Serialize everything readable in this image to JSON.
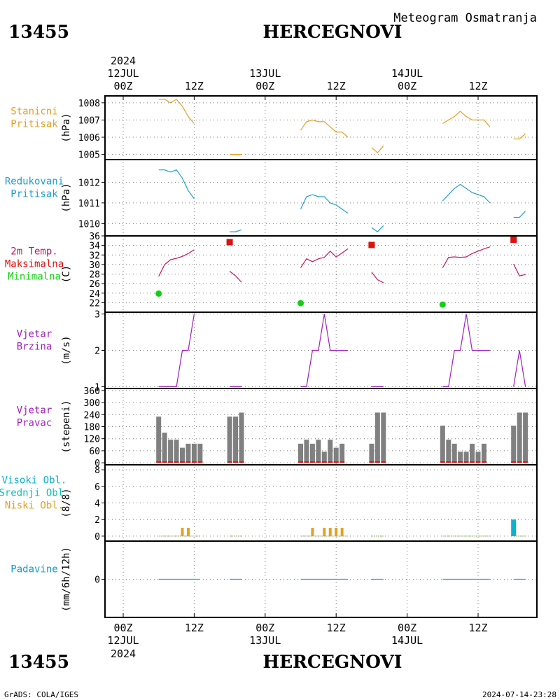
{
  "header": {
    "station_id": "13455",
    "station_name": "HERCEGNOVI",
    "product": "Meteogram Osmatranja",
    "year": "2024"
  },
  "footer": {
    "station_id": "13455",
    "station_name": "HERCEGNOVI",
    "year": "2024",
    "credit": "GrADS: COLA/IGES",
    "timestamp": "2024-07-14-23:28"
  },
  "time_axis": {
    "top_dates": [
      "12JUL",
      "13JUL",
      "14JUL"
    ],
    "bottom_dates": [
      "12JUL",
      "13JUL",
      "14JUL"
    ],
    "hour_labels": [
      "00Z",
      "12Z",
      "00Z",
      "12Z",
      "00Z",
      "12Z"
    ],
    "hour_values": [
      0,
      12,
      24,
      36,
      48,
      60
    ]
  },
  "colors": {
    "station_pressure": "#e6a020",
    "sea_pressure": "#1ea0d0",
    "temperature": "#c81464",
    "tmax": "#e01010",
    "tmin": "#10d010",
    "wind": "#a020c0",
    "wind_dir_bar": "#808080",
    "wind_dir_low": "#e01010",
    "clouds_high": "#10b0d0",
    "clouds_mid": "#10c0b0",
    "clouds_low": "#e6a020",
    "precip": "#1ea0d0",
    "precip_label": "#10a0d0"
  },
  "chart_data": [
    {
      "type": "line",
      "label_lines": [
        "Stanicni",
        "Pritisak"
      ],
      "ylabel": "(hPa)",
      "ylim": [
        1004.7,
        1008.4
      ],
      "yticks": [
        1005,
        1006,
        1007,
        1008
      ],
      "segments": [
        {
          "x": [
            6,
            7,
            8,
            9,
            10,
            11,
            12
          ],
          "y": [
            1008.2,
            1008.2,
            1008.0,
            1008.2,
            1007.8,
            1007.2,
            1006.8
          ]
        },
        {
          "x": [
            18,
            19,
            20
          ],
          "y": [
            1005.0,
            1005.0,
            1005.0
          ]
        },
        {
          "x": [
            30,
            31,
            32,
            33,
            34,
            35,
            36,
            37,
            38
          ],
          "y": [
            1006.4,
            1006.9,
            1007.0,
            1006.9,
            1006.9,
            1006.6,
            1006.3,
            1006.3,
            1006.0
          ]
        },
        {
          "x": [
            42,
            43,
            44
          ],
          "y": [
            1005.4,
            1005.1,
            1005.5
          ]
        },
        {
          "x": [
            54,
            55,
            56,
            57,
            58,
            59,
            60,
            61,
            62
          ],
          "y": [
            1006.8,
            1007.0,
            1007.2,
            1007.5,
            1007.2,
            1007.0,
            1007.0,
            1007.0,
            1006.6
          ]
        },
        {
          "x": [
            66,
            67,
            68
          ],
          "y": [
            1005.9,
            1005.9,
            1006.2
          ]
        }
      ]
    },
    {
      "type": "line",
      "label_lines": [
        "Redukovani",
        "Pritisak"
      ],
      "ylabel": "(hPa)",
      "ylim": [
        1009.4,
        1013.1
      ],
      "yticks": [
        1010,
        1011,
        1012
      ],
      "segments": [
        {
          "x": [
            6,
            7,
            8,
            9,
            10,
            11,
            12
          ],
          "y": [
            1012.6,
            1012.6,
            1012.5,
            1012.6,
            1012.2,
            1011.6,
            1011.2
          ]
        },
        {
          "x": [
            18,
            19,
            20
          ],
          "y": [
            1009.6,
            1009.6,
            1009.7
          ]
        },
        {
          "x": [
            30,
            31,
            32,
            33,
            34,
            35,
            36,
            37,
            38
          ],
          "y": [
            1010.7,
            1011.3,
            1011.4,
            1011.3,
            1011.3,
            1011.0,
            1010.9,
            1010.7,
            1010.5
          ]
        },
        {
          "x": [
            42,
            43,
            44
          ],
          "y": [
            1009.8,
            1009.6,
            1009.9
          ]
        },
        {
          "x": [
            54,
            55,
            56,
            57,
            58,
            59,
            60,
            61,
            62
          ],
          "y": [
            1011.1,
            1011.4,
            1011.7,
            1011.9,
            1011.7,
            1011.5,
            1011.4,
            1011.3,
            1011.0
          ]
        },
        {
          "x": [
            66,
            67,
            68
          ],
          "y": [
            1010.3,
            1010.3,
            1010.6
          ]
        }
      ]
    },
    {
      "type": "line",
      "label_lines": [
        "2m Temp.",
        "Maksimalna",
        "Minimalna"
      ],
      "ylabel": "(C)",
      "ylim": [
        20,
        36
      ],
      "yticks": [
        22,
        24,
        26,
        28,
        30,
        32,
        34,
        36
      ],
      "segments": [
        {
          "x": [
            6,
            7,
            8,
            9,
            10,
            11,
            12
          ],
          "y": [
            27.5,
            30.0,
            31.0,
            31.3,
            31.7,
            32.3,
            33.1
          ]
        },
        {
          "x": [
            18,
            19,
            20
          ],
          "y": [
            28.6,
            27.6,
            26.3
          ]
        },
        {
          "x": [
            30,
            31,
            32,
            33,
            34,
            35,
            36,
            37,
            38
          ],
          "y": [
            29.3,
            31.2,
            30.6,
            31.2,
            31.5,
            32.8,
            31.6,
            32.4,
            33.3
          ]
        },
        {
          "x": [
            42,
            43,
            44
          ],
          "y": [
            28.4,
            26.8,
            26.2
          ]
        },
        {
          "x": [
            54,
            55,
            56,
            57,
            58,
            59,
            60,
            61,
            62
          ],
          "y": [
            29.3,
            31.5,
            31.6,
            31.5,
            31.6,
            32.3,
            32.8,
            33.3,
            33.7
          ]
        },
        {
          "x": [
            66,
            67,
            68
          ],
          "y": [
            30.1,
            27.6,
            27.9
          ]
        }
      ],
      "maxima": {
        "x": [
          18,
          42,
          66
        ],
        "y": [
          34.7,
          34.1,
          35.2
        ]
      },
      "minima": {
        "x": [
          6,
          30,
          54
        ],
        "y": [
          23.9,
          21.9,
          21.6
        ]
      }
    },
    {
      "type": "line",
      "label_lines": [
        "Vjetar",
        "Brzina"
      ],
      "ylabel": "(m/s)",
      "ylim": [
        0.95,
        3.05
      ],
      "yticks": [
        1,
        2,
        3
      ],
      "segments": [
        {
          "x": [
            6,
            7,
            8,
            9,
            10,
            11,
            12
          ],
          "y": [
            1,
            1,
            1,
            1,
            2,
            2,
            3
          ]
        },
        {
          "x": [
            18,
            19,
            20
          ],
          "y": [
            1,
            1,
            1
          ]
        },
        {
          "x": [
            30,
            31,
            32,
            33,
            34,
            35,
            36,
            37,
            38
          ],
          "y": [
            1,
            1,
            2,
            2,
            3,
            2,
            2,
            2,
            2
          ]
        },
        {
          "x": [
            42,
            43,
            44
          ],
          "y": [
            1,
            1,
            1
          ]
        },
        {
          "x": [
            54,
            55,
            56,
            57,
            58,
            59,
            60,
            61,
            62
          ],
          "y": [
            1,
            1,
            2,
            2,
            3,
            2,
            2,
            2,
            2
          ]
        },
        {
          "x": [
            66,
            67,
            68
          ],
          "y": [
            1,
            2,
            1
          ]
        }
      ]
    },
    {
      "type": "bar",
      "label_lines": [
        "Vjetar",
        "Pravac"
      ],
      "ylabel": "(stepeni)",
      "ylim": [
        -10,
        370
      ],
      "yticks": [
        0,
        60,
        120,
        180,
        240,
        300,
        360
      ],
      "x": [
        6,
        7,
        8,
        9,
        10,
        11,
        12,
        13,
        18,
        19,
        20,
        30,
        31,
        32,
        33,
        34,
        35,
        36,
        37,
        38,
        42,
        43,
        44,
        54,
        55,
        56,
        57,
        58,
        59,
        60,
        61,
        62,
        66,
        67,
        68
      ],
      "values": [
        230,
        150,
        115,
        115,
        75,
        95,
        95,
        95,
        230,
        230,
        250,
        95,
        115,
        95,
        115,
        55,
        115,
        75,
        95,
        0,
        95,
        250,
        250,
        185,
        115,
        95,
        55,
        55,
        95,
        55,
        95,
        0,
        185,
        250,
        250
      ]
    },
    {
      "type": "bar",
      "label_lines": [
        "Visoki Obl.",
        "Srednji Obl.",
        "Niski Obl."
      ],
      "ylabel": "(8/8)",
      "ylim": [
        -0.6,
        8.6
      ],
      "yticks": [
        0,
        2,
        4,
        6,
        8
      ],
      "low": {
        "x": [
          10,
          11,
          32,
          34,
          35,
          36,
          37
        ],
        "values": [
          1,
          1,
          1,
          1,
          1,
          1,
          1
        ]
      },
      "high": {
        "x": [
          66
        ],
        "values": [
          2
        ]
      },
      "trace_segments": [
        [
          6,
          13
        ],
        [
          18,
          20
        ],
        [
          30,
          38
        ],
        [
          42,
          44
        ],
        [
          54,
          62
        ],
        [
          66,
          68
        ]
      ]
    },
    {
      "type": "line",
      "label_lines": [
        "Padavine"
      ],
      "ylabel": "(mm/6h/12h)",
      "ylim": [
        -1,
        1
      ],
      "yticks": [
        0
      ],
      "segments": [
        {
          "x": [
            6,
            13
          ],
          "y": [
            0,
            0
          ]
        },
        {
          "x": [
            18,
            20
          ],
          "y": [
            0,
            0
          ]
        },
        {
          "x": [
            30,
            38
          ],
          "y": [
            0,
            0
          ]
        },
        {
          "x": [
            42,
            44
          ],
          "y": [
            0,
            0
          ]
        },
        {
          "x": [
            54,
            62
          ],
          "y": [
            0,
            0
          ]
        },
        {
          "x": [
            66,
            68
          ],
          "y": [
            0,
            0
          ]
        }
      ]
    }
  ]
}
